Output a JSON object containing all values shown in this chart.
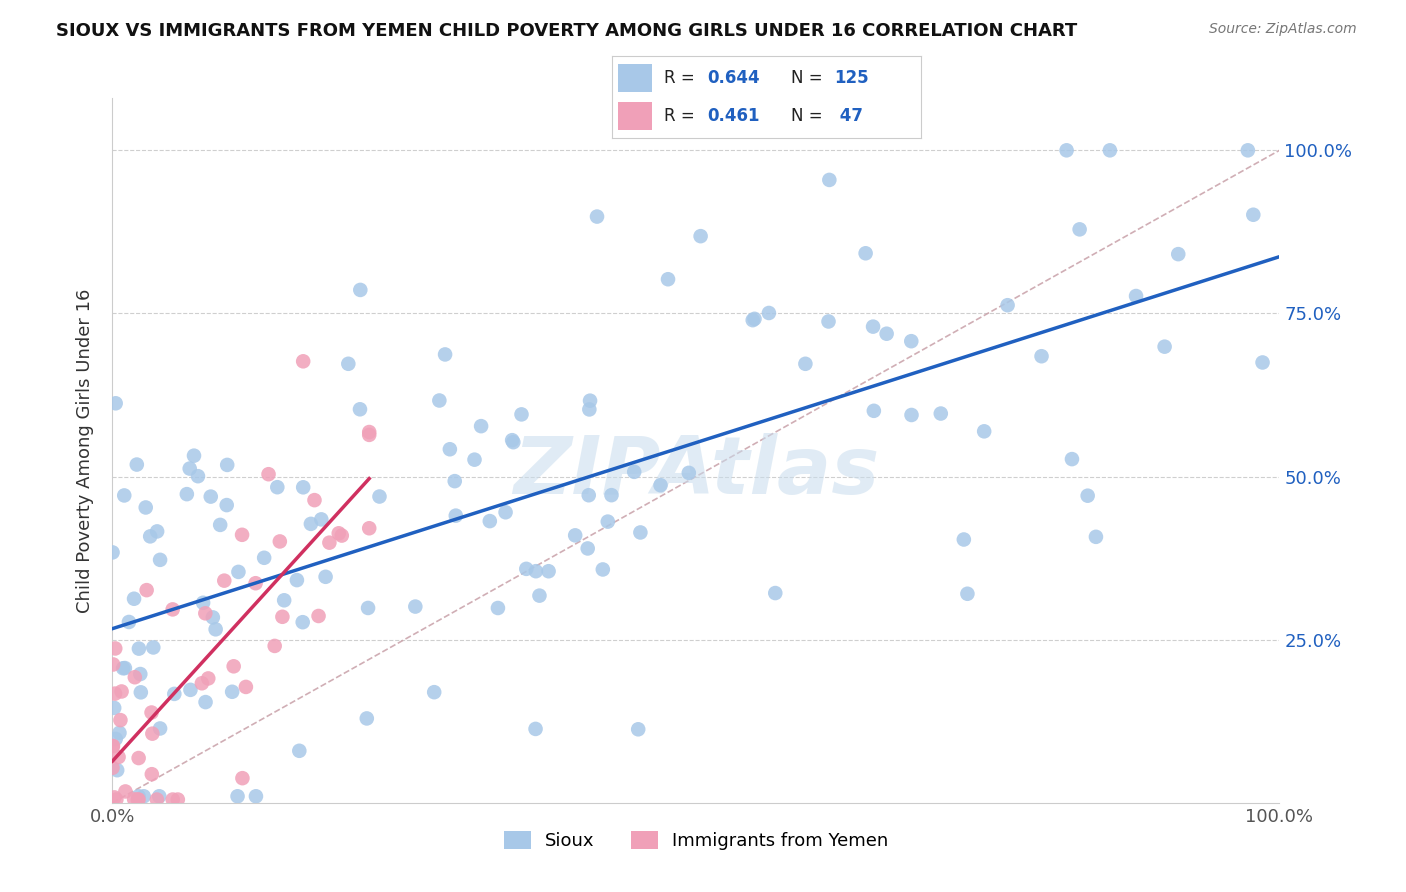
{
  "title": "SIOUX VS IMMIGRANTS FROM YEMEN CHILD POVERTY AMONG GIRLS UNDER 16 CORRELATION CHART",
  "source": "Source: ZipAtlas.com",
  "ylabel": "Child Poverty Among Girls Under 16",
  "ytick_labels": [
    "25.0%",
    "50.0%",
    "75.0%",
    "100.0%"
  ],
  "ytick_positions": [
    0.25,
    0.5,
    0.75,
    1.0
  ],
  "xlim": [
    0.0,
    1.0
  ],
  "ylim": [
    0.0,
    1.08
  ],
  "legend_r1": "0.644",
  "legend_n1": "125",
  "legend_r2": "0.461",
  "legend_n2": " 47",
  "sioux_color": "#a8c8e8",
  "sioux_line_color": "#2060c0",
  "yemen_color": "#f0a0b8",
  "yemen_line_color": "#d03060",
  "diagonal_color": "#c8a0a8",
  "watermark": "ZIPAtlas",
  "watermark_color": "#c8dced",
  "background_color": "#ffffff",
  "legend_value_color": "#2060c0"
}
